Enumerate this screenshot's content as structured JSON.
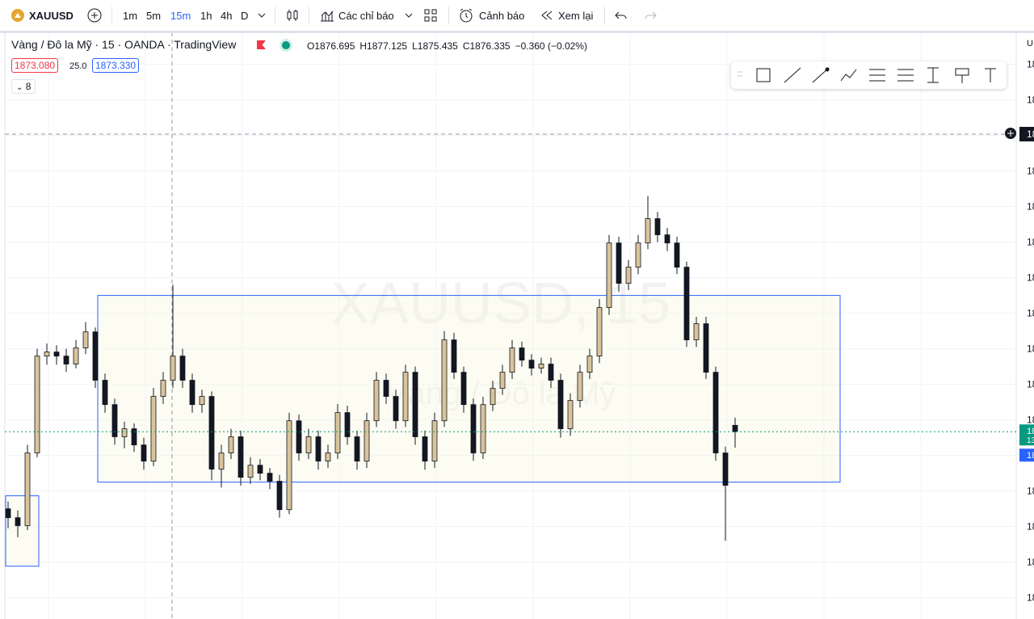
{
  "toolbar": {
    "symbol": "XAUUSD",
    "intervals": [
      "1m",
      "5m",
      "15m",
      "1h",
      "4h",
      "D"
    ],
    "indicators": "Các chỉ báo",
    "alert": "Cảnh báo",
    "replay": "Xem lại"
  },
  "legend": {
    "title": "Vàng / Đô la Mỹ · 15 · OANDA · TradingView",
    "ohlc": [
      "O1876.695",
      "H1877.125",
      "L1875.435",
      "C1876.335"
    ],
    "change": "−0.360 (−0.02%)",
    "sell": "1873.080",
    "spread": "25.0",
    "buy": "1873.330",
    "indicator_count": "8"
  },
  "watermark": {
    "symbol": "XAUUSD, 15",
    "name": "Vàng / Đô la Mỹ"
  },
  "axis": {
    "currency": "U",
    "crosshair_label": "18",
    "price_badge": "18",
    "countdown_badge": "13",
    "bid_badge": "18"
  },
  "chart_data": {
    "type": "candlestick",
    "up_color": "#d9c49a",
    "down_color": "#131722",
    "ylim": [
      1865.8,
      1898.8
    ],
    "yticks": [
      {
        "value": 1897,
        "label": "18"
      },
      {
        "value": 1895,
        "label": "18"
      },
      {
        "value": 1893,
        "label": "18"
      },
      {
        "value": 1891,
        "label": "18"
      },
      {
        "value": 1889,
        "label": "18"
      },
      {
        "value": 1887,
        "label": "18"
      },
      {
        "value": 1885,
        "label": "18"
      },
      {
        "value": 1883,
        "label": "18"
      },
      {
        "value": 1881,
        "label": "18"
      },
      {
        "value": 1879,
        "label": "18"
      },
      {
        "value": 1877,
        "label": "18"
      },
      {
        "value": 1875,
        "label": "18"
      },
      {
        "value": 1873,
        "label": "18"
      },
      {
        "value": 1871,
        "label": "18"
      },
      {
        "value": 1869,
        "label": "18"
      },
      {
        "value": 1867,
        "label": "18"
      }
    ],
    "last_price": 1876.335,
    "boxes": [
      {
        "top": 1884.0,
        "bottom": 1873.5
      },
      {
        "top": 1872.73,
        "bottom": 1868.77
      }
    ],
    "candles": [
      [
        1872.0,
        1872.4,
        1870.9,
        1871.5
      ],
      [
        1871.5,
        1871.9,
        1870.4,
        1871.05
      ],
      [
        1871.05,
        1875.6,
        1870.8,
        1875.14
      ],
      [
        1875.14,
        1881.0,
        1874.9,
        1880.59
      ],
      [
        1880.59,
        1881.3,
        1880.1,
        1880.82
      ],
      [
        1880.82,
        1881.2,
        1880.1,
        1880.59
      ],
      [
        1880.59,
        1881.0,
        1879.7,
        1880.14
      ],
      [
        1880.14,
        1881.5,
        1879.9,
        1881.05
      ],
      [
        1881.05,
        1882.5,
        1880.7,
        1881.95
      ],
      [
        1881.95,
        1882.2,
        1878.8,
        1879.23
      ],
      [
        1879.23,
        1879.6,
        1877.4,
        1877.86
      ],
      [
        1877.86,
        1878.2,
        1875.6,
        1876.05
      ],
      [
        1876.05,
        1876.9,
        1875.4,
        1876.5
      ],
      [
        1876.5,
        1876.8,
        1875.2,
        1875.59
      ],
      [
        1875.59,
        1876.0,
        1874.2,
        1874.68
      ],
      [
        1874.68,
        1878.8,
        1874.4,
        1878.32
      ],
      [
        1878.32,
        1879.7,
        1877.9,
        1879.23
      ],
      [
        1879.23,
        1884.6,
        1878.8,
        1880.59
      ],
      [
        1880.59,
        1881.0,
        1878.8,
        1879.23
      ],
      [
        1879.23,
        1879.6,
        1877.4,
        1877.86
      ],
      [
        1877.86,
        1878.7,
        1877.4,
        1878.32
      ],
      [
        1878.32,
        1878.6,
        1873.6,
        1874.23
      ],
      [
        1874.23,
        1875.6,
        1873.2,
        1875.14
      ],
      [
        1875.14,
        1876.5,
        1874.8,
        1876.05
      ],
      [
        1876.05,
        1876.4,
        1873.3,
        1873.77
      ],
      [
        1873.77,
        1874.9,
        1873.4,
        1874.45
      ],
      [
        1874.45,
        1874.8,
        1873.6,
        1874.0
      ],
      [
        1874.0,
        1874.3,
        1873.1,
        1873.55
      ],
      [
        1873.55,
        1873.9,
        1871.5,
        1871.95
      ],
      [
        1871.95,
        1877.4,
        1871.7,
        1876.95
      ],
      [
        1876.95,
        1877.3,
        1874.7,
        1875.14
      ],
      [
        1875.14,
        1876.5,
        1874.8,
        1876.05
      ],
      [
        1876.05,
        1876.4,
        1874.2,
        1874.68
      ],
      [
        1874.68,
        1875.6,
        1874.3,
        1875.14
      ],
      [
        1875.14,
        1877.9,
        1874.8,
        1877.41
      ],
      [
        1877.41,
        1877.8,
        1875.6,
        1876.05
      ],
      [
        1876.05,
        1876.4,
        1874.2,
        1874.68
      ],
      [
        1874.68,
        1877.4,
        1874.3,
        1876.95
      ],
      [
        1876.95,
        1879.7,
        1876.6,
        1879.23
      ],
      [
        1879.23,
        1879.6,
        1877.9,
        1878.32
      ],
      [
        1878.32,
        1878.7,
        1876.5,
        1876.95
      ],
      [
        1876.95,
        1880.1,
        1876.6,
        1879.68
      ],
      [
        1879.68,
        1880.0,
        1875.6,
        1876.05
      ],
      [
        1876.05,
        1876.4,
        1874.2,
        1874.68
      ],
      [
        1874.68,
        1877.4,
        1874.3,
        1876.95
      ],
      [
        1876.95,
        1882.0,
        1876.6,
        1881.5
      ],
      [
        1881.5,
        1881.9,
        1879.3,
        1879.68
      ],
      [
        1879.68,
        1880.0,
        1877.4,
        1877.86
      ],
      [
        1877.86,
        1878.2,
        1874.7,
        1875.14
      ],
      [
        1875.14,
        1878.3,
        1874.8,
        1877.86
      ],
      [
        1877.86,
        1879.2,
        1877.5,
        1878.77
      ],
      [
        1878.77,
        1880.1,
        1878.4,
        1879.68
      ],
      [
        1879.68,
        1881.5,
        1879.3,
        1881.05
      ],
      [
        1881.05,
        1881.4,
        1880.0,
        1880.36
      ],
      [
        1880.36,
        1880.7,
        1879.5,
        1879.91
      ],
      [
        1879.91,
        1880.5,
        1879.6,
        1880.14
      ],
      [
        1880.14,
        1880.5,
        1878.8,
        1879.23
      ],
      [
        1879.23,
        1879.6,
        1876.0,
        1876.5
      ],
      [
        1876.5,
        1878.5,
        1876.1,
        1878.09
      ],
      [
        1878.09,
        1880.1,
        1877.7,
        1879.68
      ],
      [
        1879.68,
        1881.0,
        1879.3,
        1880.59
      ],
      [
        1880.59,
        1883.8,
        1880.2,
        1883.32
      ],
      [
        1883.32,
        1887.4,
        1882.9,
        1886.95
      ],
      [
        1886.95,
        1887.3,
        1884.2,
        1884.68
      ],
      [
        1884.68,
        1886.0,
        1884.3,
        1885.59
      ],
      [
        1885.59,
        1887.4,
        1885.2,
        1886.95
      ],
      [
        1886.95,
        1889.6,
        1886.6,
        1888.32
      ],
      [
        1888.32,
        1888.7,
        1887.0,
        1887.41
      ],
      [
        1887.41,
        1887.8,
        1886.5,
        1886.95
      ],
      [
        1886.95,
        1887.3,
        1885.2,
        1885.59
      ],
      [
        1885.59,
        1885.9,
        1881.1,
        1881.5
      ],
      [
        1881.5,
        1882.8,
        1881.1,
        1882.41
      ],
      [
        1882.41,
        1882.8,
        1879.3,
        1879.68
      ],
      [
        1879.68,
        1880.0,
        1874.7,
        1875.14
      ],
      [
        1875.14,
        1875.5,
        1870.2,
        1873.32
      ],
      [
        1876.695,
        1877.125,
        1875.435,
        1876.335
      ]
    ]
  }
}
